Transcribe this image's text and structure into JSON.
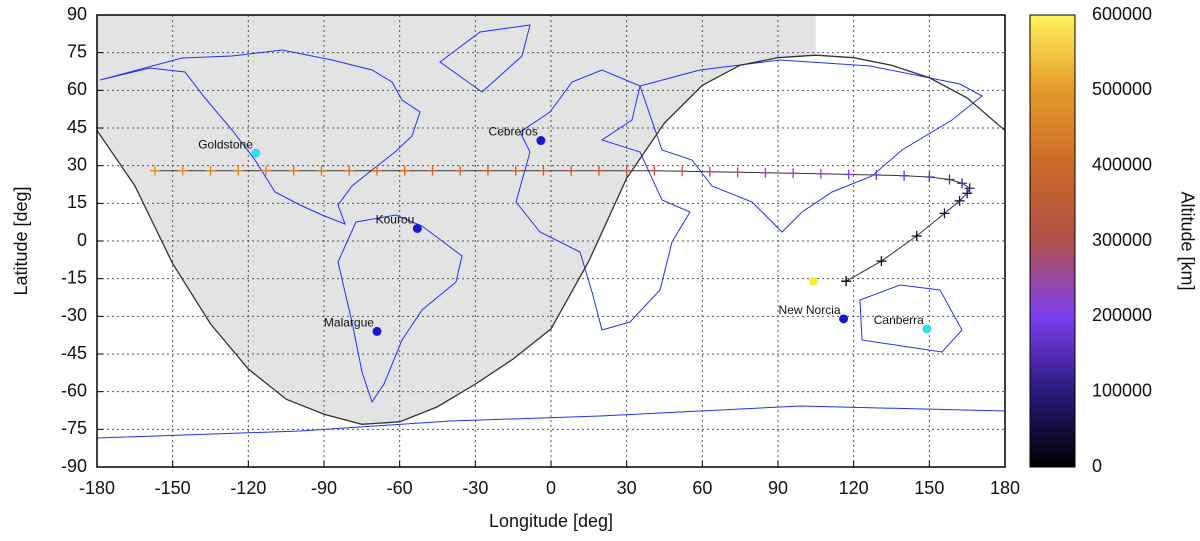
{
  "chart_data": {
    "type": "geo",
    "xlabel": "Longitude [deg]",
    "ylabel": "Latitude [deg]",
    "xlim": [
      -180,
      180
    ],
    "ylim": [
      -90,
      90
    ],
    "xticks": [
      -180,
      -150,
      -120,
      -90,
      -60,
      -30,
      0,
      30,
      60,
      90,
      120,
      150,
      180
    ],
    "yticks": [
      -90,
      -75,
      -60,
      -45,
      -30,
      -15,
      0,
      15,
      30,
      45,
      60,
      75,
      90
    ],
    "grid": true,
    "night_color": "#e3e3e3",
    "terminator": {
      "color": "#333333",
      "lon": [
        -180,
        -165,
        -150,
        -135,
        -120,
        -105,
        -90,
        -75,
        -60,
        -45,
        -30,
        -15,
        0,
        15,
        30,
        45,
        60,
        75,
        90,
        105,
        120,
        135,
        150,
        165,
        180
      ],
      "lat": [
        44,
        22,
        -9,
        -33,
        -51,
        -63,
        -69,
        -73,
        -72,
        -66,
        -57,
        -47,
        -35,
        -8,
        25,
        47,
        62,
        70,
        73,
        74,
        73,
        70,
        65,
        57,
        44
      ]
    },
    "track": {
      "line_color": "#333333",
      "lon": [
        -157,
        -146,
        -135,
        -124,
        -113,
        -102,
        -91,
        -80,
        -69,
        -58,
        -47,
        -36,
        -25,
        -14,
        -3,
        8,
        19,
        30,
        41,
        52,
        63,
        74,
        85,
        96,
        107,
        118,
        129,
        140,
        150,
        158,
        163,
        166,
        165,
        162,
        156,
        145,
        131,
        117
      ],
      "lat": [
        28,
        28,
        28,
        28,
        28,
        28,
        28,
        28,
        28,
        28,
        28,
        28,
        28,
        28,
        28,
        28,
        28,
        28,
        28,
        27.8,
        27.6,
        27.4,
        27.2,
        27,
        26.8,
        26.5,
        26.3,
        26,
        25.5,
        24.5,
        23,
        21,
        19,
        16,
        11,
        2,
        -8,
        -16
      ],
      "alt": [
        480000,
        472000,
        463000,
        455000,
        446000,
        438000,
        430000,
        421000,
        413000,
        404000,
        396000,
        387000,
        379000,
        370000,
        362000,
        353000,
        345000,
        336000,
        320000,
        305000,
        290000,
        275000,
        255000,
        235000,
        215000,
        200000,
        185000,
        170000,
        155000,
        140000,
        125000,
        110000,
        95000,
        80000,
        60000,
        35000,
        15000,
        0
      ]
    },
    "stations": [
      {
        "name": "Goldstone",
        "lon": -117,
        "lat": 35,
        "color": "#33ddee"
      },
      {
        "name": "Cebreros",
        "lon": -4,
        "lat": 40,
        "color": "#1a1acc"
      },
      {
        "name": "Kourou",
        "lon": -53,
        "lat": 5,
        "color": "#1a1acc"
      },
      {
        "name": "Malargue",
        "lon": -69,
        "lat": -36,
        "color": "#1a1acc"
      },
      {
        "name": "New Norcia",
        "lon": 116,
        "lat": -31,
        "color": "#1a1acc"
      },
      {
        "name": "Canberra",
        "lon": 149,
        "lat": -35,
        "color": "#33ddee"
      }
    ],
    "subsolar_point": {
      "lon": 104,
      "lat": -16,
      "color": "#f5ee3a"
    },
    "colorbar": {
      "label": "Altitude [km]",
      "lim": [
        0,
        600000
      ],
      "ticks": [
        0,
        100000,
        200000,
        300000,
        400000,
        500000,
        600000
      ],
      "colors": [
        "#000000",
        "#2a1a7a",
        "#7d3ff0",
        "#b0504a",
        "#c86a28",
        "#e69a2a",
        "#fff35a"
      ]
    }
  }
}
